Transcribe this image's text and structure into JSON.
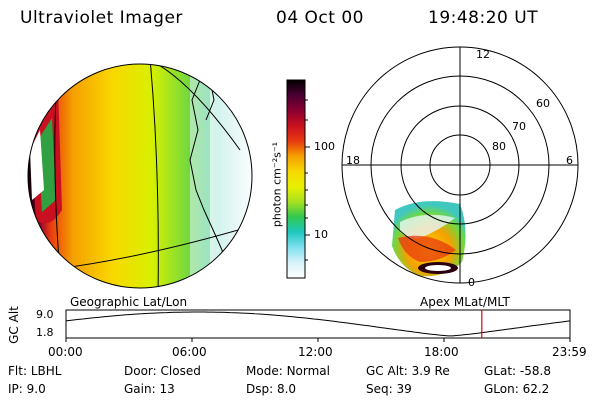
{
  "header": {
    "instrument": "Ultraviolet Imager",
    "date": "04 Oct 00",
    "time": "19:48:20 UT"
  },
  "colorbar": {
    "unit_label": "photon cm⁻²s⁻¹",
    "ticks": [
      {
        "label": "100",
        "value": 100
      },
      {
        "label": "10",
        "value": 10
      }
    ],
    "stops": [
      "#000000",
      "#4a0033",
      "#8b0030",
      "#c81020",
      "#e83a10",
      "#f5a000",
      "#f8d800",
      "#e8f000",
      "#a8e020",
      "#30c850",
      "#20c8c0",
      "#80e0f0",
      "#d8f2f8",
      "#ffffff"
    ]
  },
  "geo_panel": {
    "label": "Geographic Lat/Lon"
  },
  "polar_panel": {
    "label": "Apex MLat/MLT",
    "mlt_labels": {
      "top": "12",
      "left": "18",
      "right": "6",
      "bottom": "0"
    },
    "lat_labels": [
      "60",
      "70",
      "80"
    ]
  },
  "altitude_plot": {
    "ylabel": "GC Alt",
    "yticks": [
      "9.0",
      "1.8"
    ],
    "xticks": [
      "00:00",
      "06:00",
      "12:00",
      "18:00",
      "23:59"
    ],
    "current_time_marker_hour": 19.8
  },
  "footer": {
    "rows": [
      [
        {
          "key": "Flt:",
          "value": "LBHL"
        },
        {
          "key": "Door:",
          "value": "Closed"
        },
        {
          "key": "Mode:",
          "value": "Normal"
        },
        {
          "key": "GC Alt:",
          "value": "3.9 Re"
        },
        {
          "key": "GLat:",
          "value": "-58.8"
        }
      ],
      [
        {
          "key": "IP:",
          "value": "9.0"
        },
        {
          "key": "Gain:",
          "value": "13"
        },
        {
          "key": "Dsp:",
          "value": "8.0"
        },
        {
          "key": "Seq:",
          "value": "39"
        },
        {
          "key": "GLon:",
          "value": "62.2"
        }
      ]
    ]
  }
}
